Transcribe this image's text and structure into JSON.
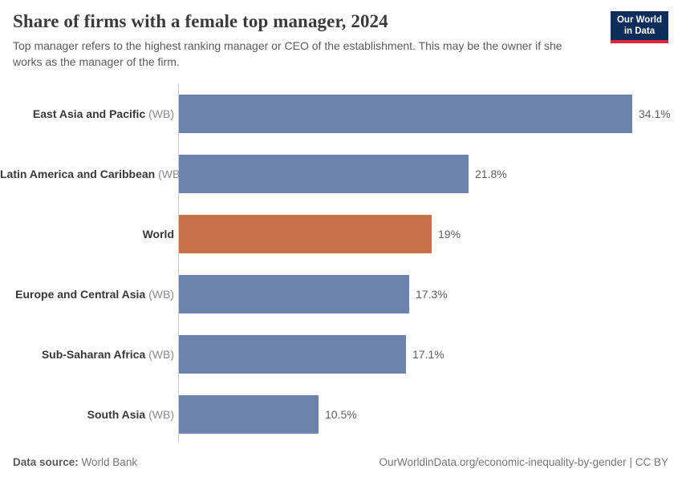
{
  "header": {
    "title": "Share of firms with a female top manager, 2024",
    "subtitle": "Top manager refers to the highest ranking manager or CEO of the establishment. This may be the owner if she works as the manager of the firm.",
    "logo": {
      "line1": "Our World",
      "line2": "in Data"
    }
  },
  "chart_data": {
    "type": "bar",
    "orientation": "horizontal",
    "title": "Share of firms with a female top manager, 2024",
    "unit": "%",
    "categories": [
      "East Asia and Pacific",
      "Latin America and Caribbean",
      "World",
      "Europe and Central Asia",
      "Sub-Saharan Africa",
      "South Asia"
    ],
    "category_suffixes": [
      "(WB)",
      "(WB)",
      "",
      "(WB)",
      "(WB)",
      "(WB)"
    ],
    "values": [
      34.1,
      21.8,
      19,
      17.3,
      17.1,
      10.5
    ],
    "value_labels": [
      "34.1%",
      "21.8%",
      "19%",
      "17.3%",
      "17.1%",
      "10.5%"
    ],
    "bar_colors": [
      "#6c84ad",
      "#6c84ad",
      "#c9714a",
      "#6c84ad",
      "#6c84ad",
      "#6c84ad"
    ],
    "xlim": [
      0,
      34.1
    ],
    "grid": false,
    "legend": "none"
  },
  "colors": {
    "bar_blue": "#6c84ad",
    "bar_highlight_orange": "#c9714a",
    "logo_navy": "#0d2e5a",
    "logo_red": "#e0243f",
    "axis_line": "#cfcfcf"
  },
  "footer": {
    "source_label": "Data source:",
    "source_value": "World Bank",
    "url": "OurWorldinData.org/economic-inequality-by-gender",
    "separator": "|",
    "license": "CC BY"
  }
}
